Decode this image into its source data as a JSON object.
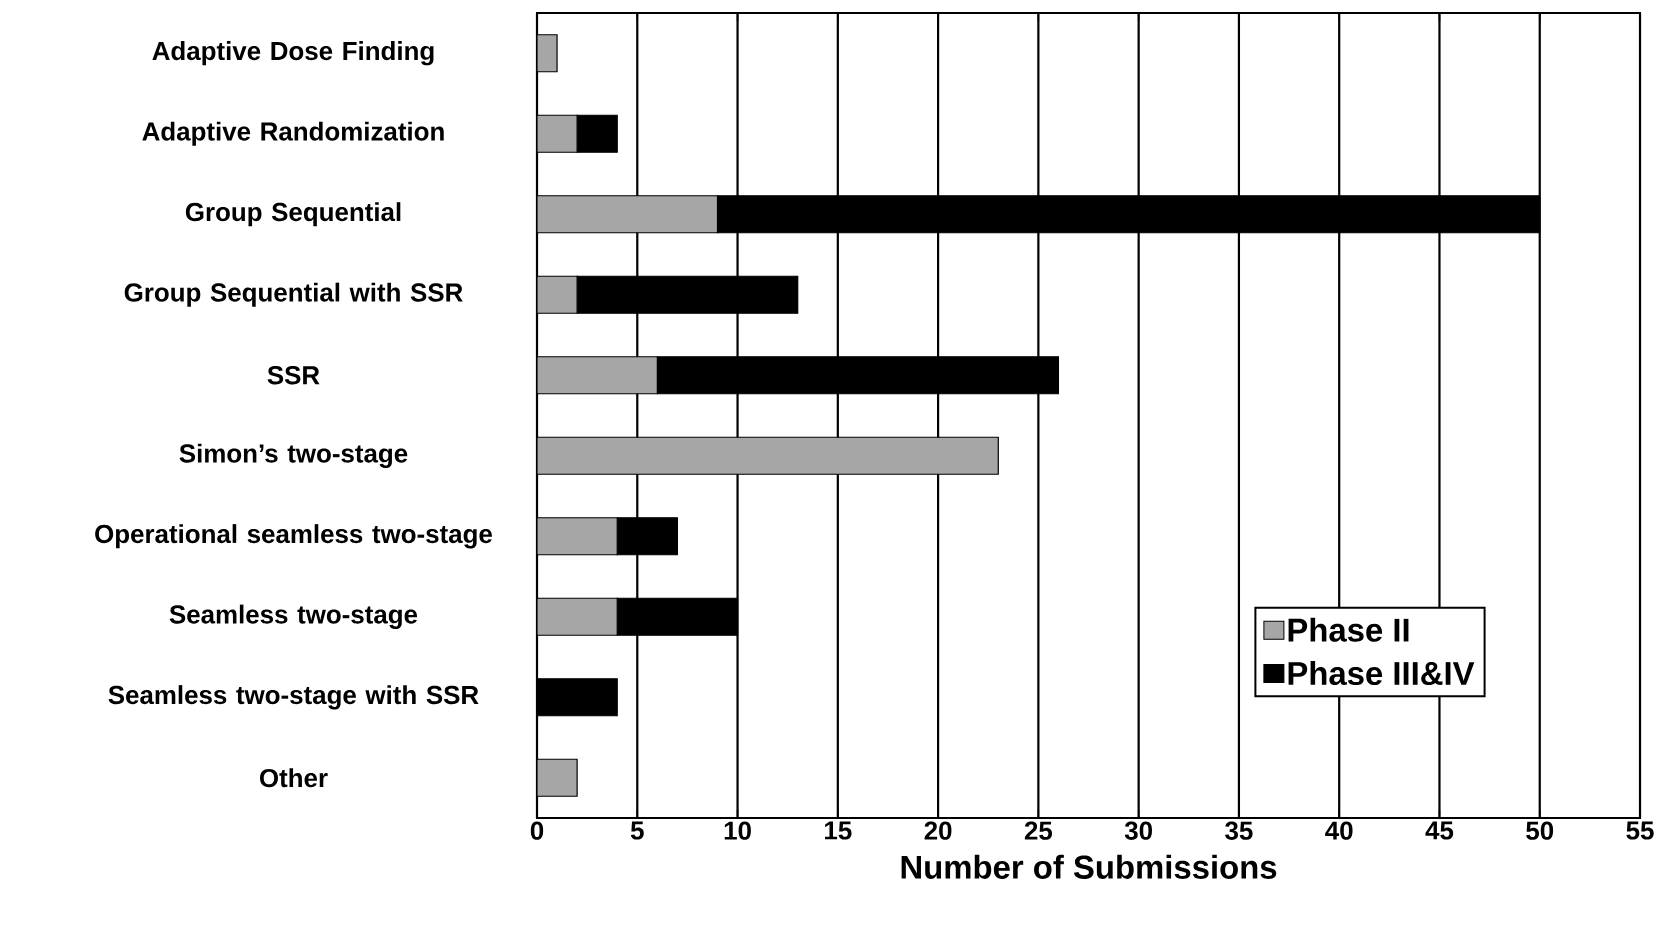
{
  "chart_data": {
    "type": "bar",
    "orientation": "horizontal",
    "stacked": true,
    "categories": [
      "Adaptive Dose Finding",
      "Adaptive Randomization",
      "Group Sequential",
      "Group Sequential with SSR",
      "SSR",
      "Simon’s two-stage",
      "Operational seamless two-stage",
      "Seamless two-stage",
      "Seamless two-stage with SSR",
      "Other"
    ],
    "series": [
      {
        "name": "Phase II",
        "color": "#a6a6a6",
        "values": [
          1,
          2,
          9,
          2,
          6,
          23,
          4,
          4,
          0,
          2
        ]
      },
      {
        "name": "Phase III&IV",
        "color": "#000000",
        "values": [
          0,
          2,
          41,
          11,
          20,
          0,
          3,
          6,
          4,
          0
        ]
      }
    ],
    "xlabel": "Number of Submissions",
    "xlim": [
      0,
      55
    ],
    "xticks": [
      0,
      5,
      10,
      15,
      20,
      25,
      30,
      35,
      40,
      45,
      50,
      55
    ],
    "grid": "x",
    "legend": "bottom right"
  }
}
